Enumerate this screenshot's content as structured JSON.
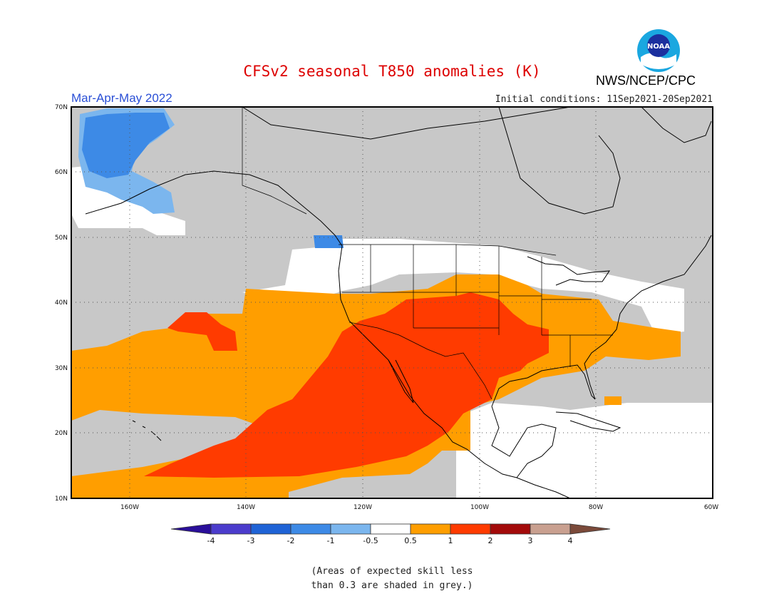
{
  "title": "CFSv2 seasonal T850 anomalies (K)",
  "agency": "NWS/NCEP/CPC",
  "logo_text": "NOAA",
  "season": "Mar-Apr-May 2022",
  "initial_conditions": "Initial conditions: 11Sep2021-20Sep2021",
  "lat_labels": [
    "70N",
    "60N",
    "50N",
    "40N",
    "30N",
    "20N",
    "10N"
  ],
  "lon_labels": [
    "160W",
    "140W",
    "120W",
    "100W",
    "80W",
    "60W"
  ],
  "colorbar": {
    "colors": [
      "#2a0f9a",
      "#4b3ccc",
      "#1f63d6",
      "#3d8ae6",
      "#7bb6ee",
      "#ffffff",
      "#ff9e00",
      "#ff3b00",
      "#a30a0a",
      "#c9a090",
      "#7b4a3a"
    ],
    "labels": [
      "-4",
      "-3",
      "-2",
      "-1",
      "-0.5",
      "0.5",
      "1",
      "2",
      "3",
      "4"
    ]
  },
  "skill_note": [
    "(Areas of expected skill less",
    "than 0.3 are shaded in grey.)"
  ],
  "region_colors": {
    "grey": "#c8c8c8",
    "white": "#ffffff",
    "orange": "#ff9e00",
    "red": "#ff3b00",
    "blue": "#3d8ae6",
    "lightblue": "#7bb6ee"
  }
}
